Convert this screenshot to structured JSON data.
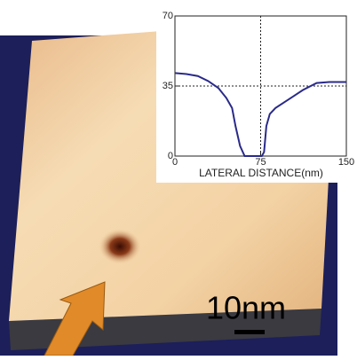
{
  "chart_data": {
    "type": "line",
    "xlabel": "LATERAL DISTANCE(nm)",
    "x": [
      0,
      10,
      20,
      29,
      38,
      45,
      50,
      53,
      57,
      61,
      66,
      72,
      76,
      78,
      80,
      83,
      88,
      96,
      104,
      112,
      124,
      135,
      150
    ],
    "series": [
      {
        "color": "#2a2a8a",
        "values": [
          41.5,
          41,
          40,
          37.5,
          34,
          29,
          24,
          15,
          5,
          0,
          0,
          0,
          0,
          2,
          15,
          21,
          24,
          27,
          30,
          33,
          36.5,
          37,
          37
        ]
      }
    ],
    "xlim": [
      0,
      150
    ],
    "ylim": [
      0,
      70
    ],
    "xticks": [
      0,
      75,
      150
    ],
    "yticks": [
      0,
      35,
      70
    ],
    "crosshair": [
      75,
      35
    ]
  },
  "scale_bar": "10nm"
}
